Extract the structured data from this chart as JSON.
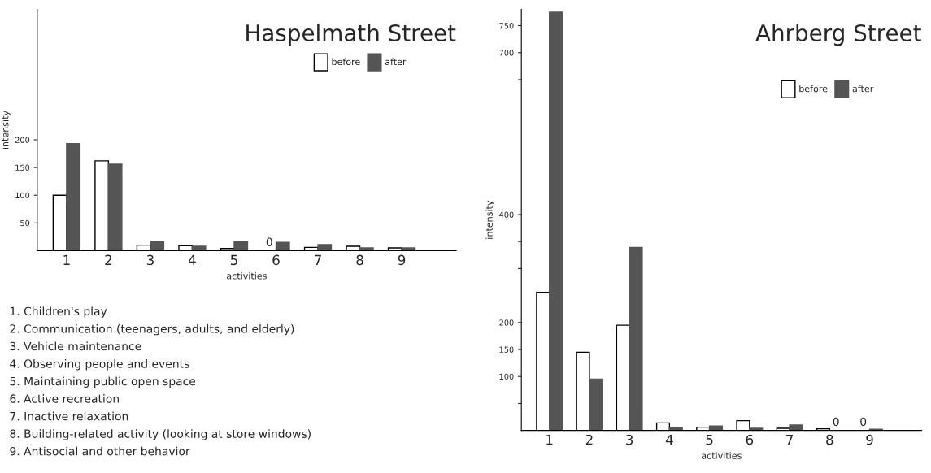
{
  "chart_data": [
    {
      "type": "bar",
      "title": "Haspelmath Street",
      "xlabel": "activities",
      "ylabel": "intensity",
      "categories": [
        "1",
        "2",
        "3",
        "4",
        "5",
        "6",
        "7",
        "8",
        "9"
      ],
      "series": [
        {
          "name": "before",
          "color": "#ffffff",
          "values": [
            100,
            162,
            10,
            9,
            4,
            0,
            6,
            8,
            5
          ],
          "value_labels": [
            null,
            null,
            null,
            null,
            null,
            "0",
            null,
            null,
            null
          ]
        },
        {
          "name": "after",
          "color": "#555555",
          "values": [
            193,
            156,
            17,
            8,
            16,
            15,
            11,
            5,
            5
          ],
          "value_labels": [
            null,
            null,
            null,
            null,
            null,
            null,
            null,
            null,
            null
          ]
        }
      ],
      "ylim": [
        0,
        435
      ],
      "yticks": [
        50,
        100,
        150,
        200
      ],
      "legend": "top right",
      "annotations": [
        "1. Children's play",
        "2. Communication (teenagers, adults, and elderly)",
        "3. Vehicle maintenance",
        "4. Observing people and events",
        "5. Maintaining public open space",
        "6. Active recreation",
        "7. Inactive relaxation",
        "8. Building-related activity (looking at store windows)",
        "9. Antisocial and other behavior"
      ]
    },
    {
      "type": "bar",
      "title": "Ahrberg Street",
      "xlabel": "activities",
      "ylabel": "intensity",
      "categories": [
        "1",
        "2",
        "3",
        "4",
        "5",
        "6",
        "7",
        "8",
        "9"
      ],
      "series": [
        {
          "name": "before",
          "color": "#ffffff",
          "values": [
            256,
            145,
            195,
            14,
            6,
            18,
            4,
            3,
            0
          ],
          "value_labels": [
            null,
            null,
            null,
            null,
            null,
            null,
            null,
            null,
            "0"
          ]
        },
        {
          "name": "after",
          "color": "#555555",
          "values": [
            775,
            95,
            339,
            5,
            8,
            4,
            10,
            0,
            2
          ],
          "value_labels": [
            null,
            null,
            null,
            null,
            null,
            null,
            null,
            "0",
            null
          ]
        }
      ],
      "ylim": [
        0,
        780
      ],
      "yticks": [
        {
          "value": 50,
          "label": null
        },
        100,
        150,
        200,
        {
          "value": 300,
          "label": null
        },
        {
          "value": 350,
          "label": null
        },
        400,
        {
          "value": 650,
          "label": null
        },
        700,
        750
      ],
      "legend": "top right"
    }
  ]
}
